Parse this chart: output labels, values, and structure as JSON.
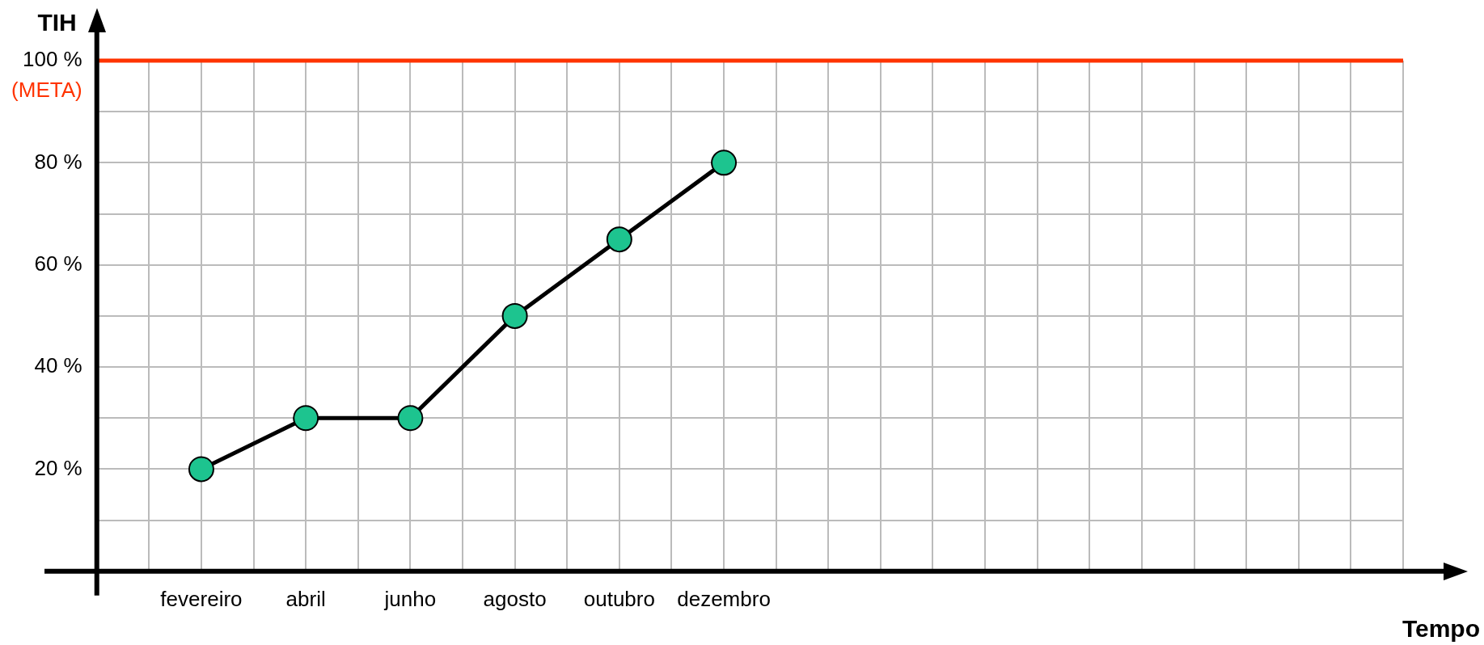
{
  "chart_data": {
    "type": "line",
    "xlabel": "Tempo",
    "ylabel": "TIH",
    "categories": [
      null,
      null,
      "fevereiro",
      null,
      "abril",
      null,
      "junho",
      null,
      "agosto",
      null,
      "outubro",
      null,
      "dezembro",
      null,
      null,
      null,
      null,
      null,
      null,
      null,
      null,
      null,
      null,
      null,
      null,
      null
    ],
    "series": [
      {
        "color": "#1dc48f",
        "values": [
          null,
          null,
          20,
          null,
          30,
          null,
          30,
          null,
          50,
          null,
          65,
          null,
          80,
          null,
          null,
          null,
          null,
          null,
          null,
          null,
          null,
          null,
          null,
          null,
          null,
          null
        ]
      }
    ],
    "ylim": [
      0,
      100
    ],
    "yticks": [
      {
        "value": 0,
        "label": null
      },
      {
        "value": 10,
        "label": null
      },
      {
        "value": 20,
        "label": "20 %"
      },
      {
        "value": 30,
        "label": null
      },
      {
        "value": 40,
        "label": "40 %"
      },
      {
        "value": 50,
        "label": null
      },
      {
        "value": 60,
        "label": "60 %"
      },
      {
        "value": 70,
        "label": null
      },
      {
        "value": 80,
        "label": "80 %"
      },
      {
        "value": 90,
        "label": null
      },
      {
        "value": 100,
        "label": "100 %"
      }
    ],
    "ref_lines": [
      {
        "axis": "y",
        "value": 100,
        "label": "(META)",
        "color": "#ff3300"
      }
    ],
    "grid": true,
    "legend": false,
    "marker": "circle",
    "line_style": "solid"
  }
}
